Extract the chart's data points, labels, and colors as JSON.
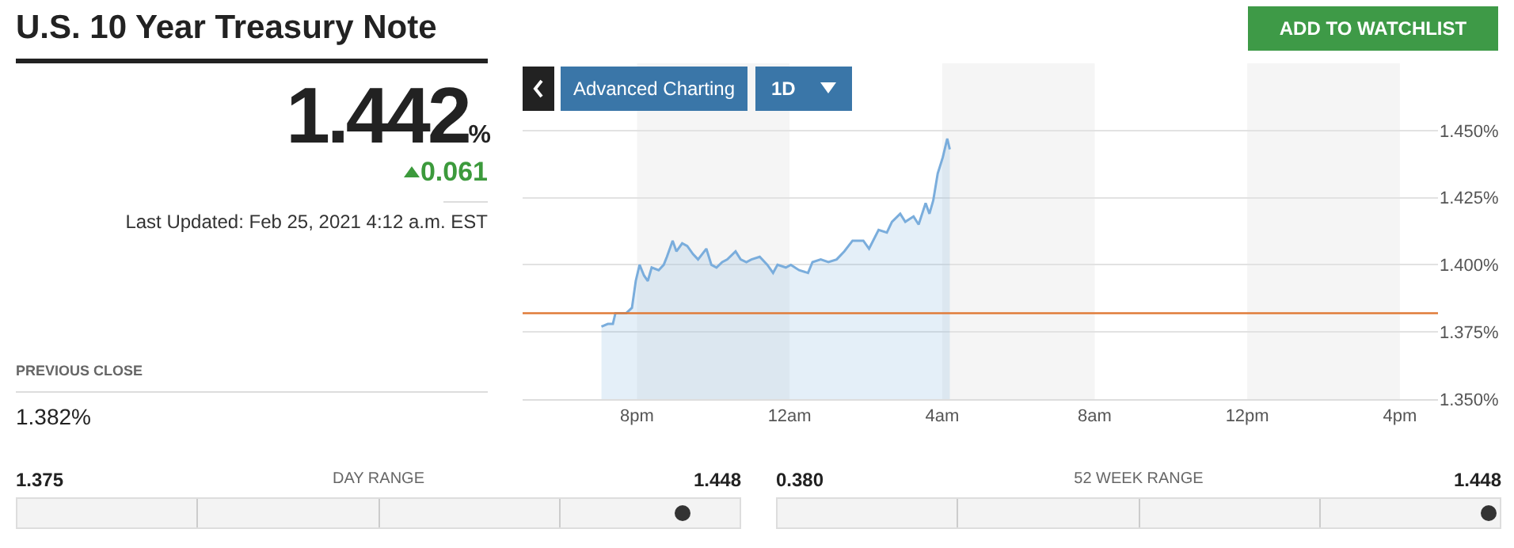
{
  "chart_data": {
    "type": "area",
    "title": "U.S. 10 Year Treasury Note",
    "x": [
      "2021-02-24T19:04",
      "2021-02-24T19:14",
      "2021-02-24T19:22",
      "2021-02-24T19:26",
      "2021-02-24T19:43",
      "2021-02-24T19:52",
      "2021-02-24T19:58",
      "2021-02-24T20:04",
      "2021-02-24T20:11",
      "2021-02-24T20:17",
      "2021-02-24T20:23",
      "2021-02-24T20:34",
      "2021-02-24T20:42",
      "2021-02-24T20:47",
      "2021-02-24T20:56",
      "2021-02-24T21:02",
      "2021-02-24T21:11",
      "2021-02-24T21:19",
      "2021-02-24T21:28",
      "2021-02-24T21:36",
      "2021-02-24T21:49",
      "2021-02-24T21:57",
      "2021-02-24T22:05",
      "2021-02-24T22:14",
      "2021-02-24T22:22",
      "2021-02-24T22:35",
      "2021-02-24T22:43",
      "2021-02-24T22:52",
      "2021-02-24T23:00",
      "2021-02-24T23:13",
      "2021-02-24T23:25",
      "2021-02-24T23:34",
      "2021-02-24T23:41",
      "2021-02-24T23:54",
      "2021-02-25T00:02",
      "2021-02-25T00:15",
      "2021-02-25T00:29",
      "2021-02-25T00:36",
      "2021-02-25T00:49",
      "2021-02-25T01:01",
      "2021-02-25T01:14",
      "2021-02-25T01:26",
      "2021-02-25T01:39",
      "2021-02-25T01:56",
      "2021-02-25T02:05",
      "2021-02-25T02:20",
      "2021-02-25T02:33",
      "2021-02-25T02:41",
      "2021-02-25T02:54",
      "2021-02-25T03:02",
      "2021-02-25T03:15",
      "2021-02-25T03:23",
      "2021-02-25T03:34",
      "2021-02-25T03:40",
      "2021-02-25T03:46",
      "2021-02-25T03:53",
      "2021-02-25T04:01",
      "2021-02-25T04:08",
      "2021-02-25T04:10",
      "2021-02-25T04:12"
    ],
    "series": [
      {
        "color": "#7aaddc",
        "values": [
          1.377,
          1.378,
          1.378,
          1.382,
          1.382,
          1.384,
          1.394,
          1.4,
          1.396,
          1.394,
          1.399,
          1.398,
          1.4,
          1.403,
          1.409,
          1.405,
          1.408,
          1.407,
          1.404,
          1.402,
          1.406,
          1.4,
          1.399,
          1.401,
          1.402,
          1.405,
          1.402,
          1.401,
          1.402,
          1.403,
          1.4,
          1.397,
          1.4,
          1.399,
          1.4,
          1.398,
          1.397,
          1.401,
          1.402,
          1.401,
          1.402,
          1.405,
          1.409,
          1.409,
          1.406,
          1.413,
          1.412,
          1.416,
          1.419,
          1.416,
          1.418,
          1.415,
          1.423,
          1.419,
          1.424,
          1.434,
          1.44,
          1.447,
          1.445,
          1.443
        ]
      }
    ],
    "xlim": [
      "2021-02-24T17:00",
      "2021-02-25T17:00"
    ],
    "xticks": [
      {
        "value": "2021-02-24T20:00",
        "label": "8pm"
      },
      {
        "value": "2021-02-25T00:00",
        "label": "12am"
      },
      {
        "value": "2021-02-25T04:00",
        "label": "4am"
      },
      {
        "value": "2021-02-25T08:00",
        "label": "8am"
      },
      {
        "value": "2021-02-25T12:00",
        "label": "12pm"
      },
      {
        "value": "2021-02-25T16:00",
        "label": "4pm"
      }
    ],
    "ylim": [
      1.35,
      1.475
    ],
    "yticks": [
      {
        "value": 1.35,
        "label": "1.350%"
      },
      {
        "value": 1.375,
        "label": "1.375%"
      },
      {
        "value": 1.4,
        "label": "1.400%"
      },
      {
        "value": 1.425,
        "label": "1.425%"
      },
      {
        "value": 1.45,
        "label": "1.450%"
      }
    ],
    "grid": "y",
    "legend": false,
    "ref_lines": [
      {
        "axis": "y",
        "value": 1.382,
        "color": "#e07b39"
      }
    ],
    "bands": [
      {
        "axis": "x",
        "from": "2021-02-24T20:00",
        "to": "2021-02-25T00:00",
        "color": "#f5f5f5"
      },
      {
        "axis": "x",
        "from": "2021-02-25T04:00",
        "to": "2021-02-25T08:00",
        "color": "#f5f5f5"
      },
      {
        "axis": "x",
        "from": "2021-02-25T12:00",
        "to": "2021-02-25T16:00",
        "color": "#f5f5f5"
      }
    ],
    "annotations": [
      "1.442%",
      "0.061",
      "Last Updated: Feb 25, 2021 4:12 a.m. EST",
      "PREVIOUS CLOSE",
      "1.382%",
      "1.375",
      "DAY RANGE",
      "1.448",
      "0.380",
      "52 WEEK RANGE",
      "1.448",
      "ADD TO WATCHLIST",
      "Advanced Charting",
      "1D"
    ]
  }
}
